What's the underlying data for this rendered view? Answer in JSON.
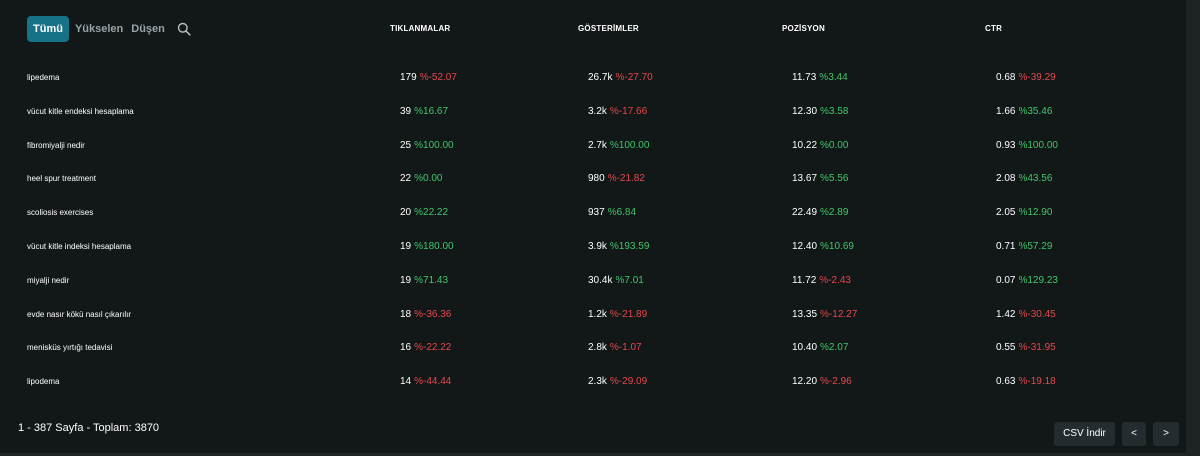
{
  "tabs": [
    {
      "label": "Tümü",
      "active": true
    },
    {
      "label": "Yükselen",
      "active": false
    },
    {
      "label": "Düşen",
      "active": false
    }
  ],
  "search_icon": "search-icon",
  "columns": {
    "clicks": "TIKLANMALAR",
    "impressions": "GÖSTERİMLER",
    "position": "POZİSYON",
    "ctr": "CTR"
  },
  "rows": [
    {
      "query": "lipedema",
      "clicks": {
        "value": "179",
        "change": "%-52.07",
        "trend": "neg"
      },
      "impressions": {
        "value": "26.7k",
        "change": "%-27.70",
        "trend": "neg"
      },
      "position": {
        "value": "11.73",
        "change": "%3.44",
        "trend": "pos"
      },
      "ctr": {
        "value": "0.68",
        "change": "%-39.29",
        "trend": "neg"
      }
    },
    {
      "query": "vücut kitle endeksi hesaplama",
      "clicks": {
        "value": "39",
        "change": "%16.67",
        "trend": "pos"
      },
      "impressions": {
        "value": "3.2k",
        "change": "%-17.66",
        "trend": "neg"
      },
      "position": {
        "value": "12.30",
        "change": "%3.58",
        "trend": "pos"
      },
      "ctr": {
        "value": "1.66",
        "change": "%35.46",
        "trend": "pos"
      }
    },
    {
      "query": "fibromiyalji nedir",
      "clicks": {
        "value": "25",
        "change": "%100.00",
        "trend": "pos"
      },
      "impressions": {
        "value": "2.7k",
        "change": "%100.00",
        "trend": "pos"
      },
      "position": {
        "value": "10.22",
        "change": "%0.00",
        "trend": "pos"
      },
      "ctr": {
        "value": "0.93",
        "change": "%100.00",
        "trend": "pos"
      }
    },
    {
      "query": "heel spur treatment",
      "clicks": {
        "value": "22",
        "change": "%0.00",
        "trend": "pos"
      },
      "impressions": {
        "value": "980",
        "change": "%-21.82",
        "trend": "neg"
      },
      "position": {
        "value": "13.67",
        "change": "%5.56",
        "trend": "pos"
      },
      "ctr": {
        "value": "2.08",
        "change": "%43.56",
        "trend": "pos"
      }
    },
    {
      "query": "scoliosis exercises",
      "clicks": {
        "value": "20",
        "change": "%22.22",
        "trend": "pos"
      },
      "impressions": {
        "value": "937",
        "change": "%6.84",
        "trend": "pos"
      },
      "position": {
        "value": "22.49",
        "change": "%2.89",
        "trend": "pos"
      },
      "ctr": {
        "value": "2.05",
        "change": "%12.90",
        "trend": "pos"
      }
    },
    {
      "query": "vücut kitle indeksi hesaplama",
      "clicks": {
        "value": "19",
        "change": "%180.00",
        "trend": "pos"
      },
      "impressions": {
        "value": "3.9k",
        "change": "%193.59",
        "trend": "pos"
      },
      "position": {
        "value": "12.40",
        "change": "%10.69",
        "trend": "pos"
      },
      "ctr": {
        "value": "0.71",
        "change": "%57.29",
        "trend": "pos"
      }
    },
    {
      "query": "miyalji nedir",
      "clicks": {
        "value": "19",
        "change": "%71.43",
        "trend": "pos"
      },
      "impressions": {
        "value": "30.4k",
        "change": "%7.01",
        "trend": "pos"
      },
      "position": {
        "value": "11.72",
        "change": "%-2.43",
        "trend": "neg"
      },
      "ctr": {
        "value": "0.07",
        "change": "%129.23",
        "trend": "pos"
      }
    },
    {
      "query": "evde nasır kökü nasıl çıkarılır",
      "clicks": {
        "value": "18",
        "change": "%-36.36",
        "trend": "neg"
      },
      "impressions": {
        "value": "1.2k",
        "change": "%-21.89",
        "trend": "neg"
      },
      "position": {
        "value": "13.35",
        "change": "%-12.27",
        "trend": "neg"
      },
      "ctr": {
        "value": "1.42",
        "change": "%-30.45",
        "trend": "neg"
      }
    },
    {
      "query": "menisküs yırtığı tedavisi",
      "clicks": {
        "value": "16",
        "change": "%-22.22",
        "trend": "neg"
      },
      "impressions": {
        "value": "2.8k",
        "change": "%-1.07",
        "trend": "neg"
      },
      "position": {
        "value": "10.40",
        "change": "%2.07",
        "trend": "pos"
      },
      "ctr": {
        "value": "0.55",
        "change": "%-31.95",
        "trend": "neg"
      }
    },
    {
      "query": "lipodema",
      "clicks": {
        "value": "14",
        "change": "%-44.44",
        "trend": "neg"
      },
      "impressions": {
        "value": "2.3k",
        "change": "%-29.09",
        "trend": "neg"
      },
      "position": {
        "value": "12.20",
        "change": "%-2.96",
        "trend": "neg"
      },
      "ctr": {
        "value": "0.63",
        "change": "%-19.18",
        "trend": "neg"
      }
    }
  ],
  "footer": {
    "pagination_text": "1 - 387 Sayfa - Toplam: 3870",
    "csv_label": "CSV İndir",
    "prev_label": "<",
    "next_label": ">"
  },
  "colors": {
    "active_tab": "#157287",
    "positive": "#3fc76a",
    "negative": "#e5484d",
    "background": "#121718"
  }
}
